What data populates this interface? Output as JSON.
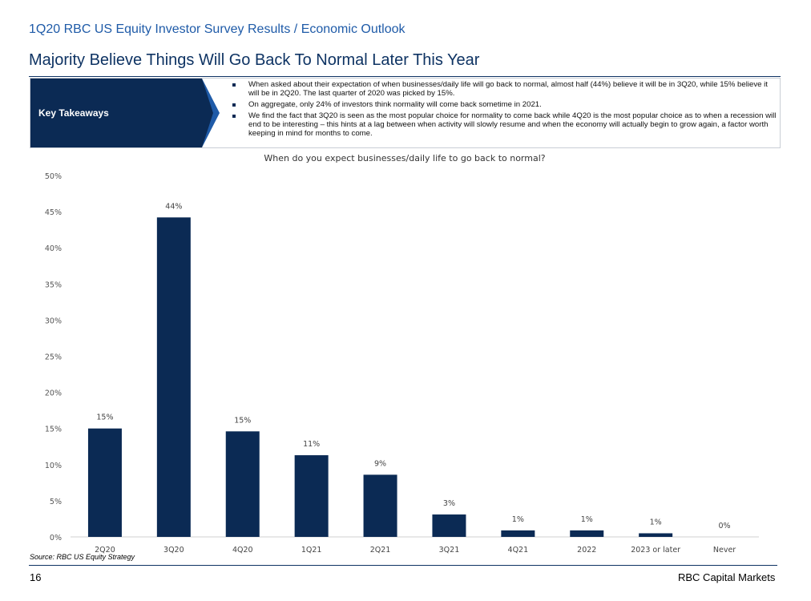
{
  "header": {
    "section_title": "1Q20 RBC US Equity Investor Survey Results / Economic Outlook",
    "main_title": "Majority Believe Things Will Go Back To Normal Later This Year"
  },
  "key_takeaways": {
    "label": "Key Takeaways",
    "items": [
      "When asked about their expectation of when businesses/daily life will go back to normal, almost half (44%) believe it will be in 3Q20, while 15% believe it will be in 2Q20. The last quarter of 2020 was picked by 15%.",
      "On aggregate, only 24% of investors think normality will come back sometime in 2021.",
      "We find the fact that 3Q20 is seen as the most popular choice for normality to come back while 4Q20 is the most popular choice as to when a recession will end to be interesting – this hints at a lag between when activity will slowly resume and when the economy will actually begin to grow again, a factor worth keeping in mind for months to come."
    ]
  },
  "chart_data": {
    "type": "bar",
    "title": "When do you expect businesses/daily life to go back to normal?",
    "categories": [
      "2Q20",
      "3Q20",
      "4Q20",
      "1Q21",
      "2Q21",
      "3Q21",
      "4Q21",
      "2022",
      "2023 or later",
      "Never"
    ],
    "values": [
      15,
      44.2,
      14.6,
      11.3,
      8.6,
      3.1,
      0.9,
      0.9,
      0.5,
      0
    ],
    "data_labels": [
      "15%",
      "44%",
      "15%",
      "11%",
      "9%",
      "3%",
      "1%",
      "1%",
      "1%",
      "0%"
    ],
    "ylim": [
      0,
      50
    ],
    "yticks": [
      "0%",
      "5%",
      "10%",
      "15%",
      "20%",
      "25%",
      "30%",
      "35%",
      "40%",
      "45%",
      "50%"
    ],
    "xlabel": "",
    "ylabel": "",
    "grid": false,
    "bar_color": "#0b2a54"
  },
  "footer": {
    "source": "Source: RBC US Equity Strategy",
    "page_number": "16",
    "brand": "RBC Capital Markets"
  }
}
